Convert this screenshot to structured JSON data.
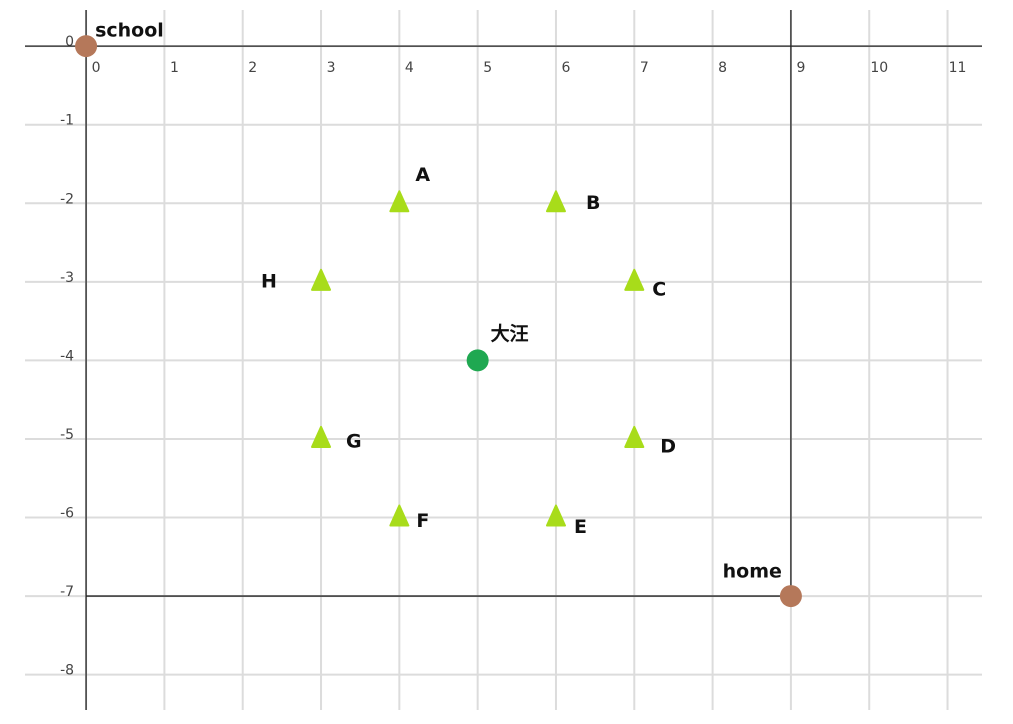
{
  "chart_data": {
    "type": "scatter",
    "xlim": [
      -0.78,
      11.44
    ],
    "ylim": [
      -8.45,
      0.46
    ],
    "xticks": [
      0,
      1,
      2,
      3,
      4,
      5,
      6,
      7,
      8,
      9,
      10,
      11
    ],
    "yticks": [
      0,
      -1,
      -2,
      -3,
      -4,
      -5,
      -6,
      -7,
      -8
    ],
    "grid": true,
    "points": [
      {
        "label": "school",
        "x": 0,
        "y": 0,
        "color": "#b5785a",
        "marker": "circle"
      },
      {
        "label": "home",
        "x": 9,
        "y": -7,
        "color": "#b5785a",
        "marker": "circle"
      },
      {
        "label": "大汪",
        "x": 5,
        "y": -4,
        "color": "#1fa851",
        "marker": "circle"
      },
      {
        "label": "A",
        "x": 4,
        "y": -2,
        "color": "#a8dc1a",
        "marker": "triangle"
      },
      {
        "label": "B",
        "x": 6,
        "y": -2,
        "color": "#a8dc1a",
        "marker": "triangle"
      },
      {
        "label": "C",
        "x": 7,
        "y": -3,
        "color": "#a8dc1a",
        "marker": "triangle"
      },
      {
        "label": "D",
        "x": 7,
        "y": -5,
        "color": "#a8dc1a",
        "marker": "triangle"
      },
      {
        "label": "E",
        "x": 6,
        "y": -6,
        "color": "#a8dc1a",
        "marker": "triangle"
      },
      {
        "label": "F",
        "x": 4,
        "y": -6,
        "color": "#a8dc1a",
        "marker": "triangle"
      },
      {
        "label": "G",
        "x": 3,
        "y": -5,
        "color": "#a8dc1a",
        "marker": "triangle"
      },
      {
        "label": "H",
        "x": 3,
        "y": -3,
        "color": "#a8dc1a",
        "marker": "triangle"
      }
    ]
  }
}
